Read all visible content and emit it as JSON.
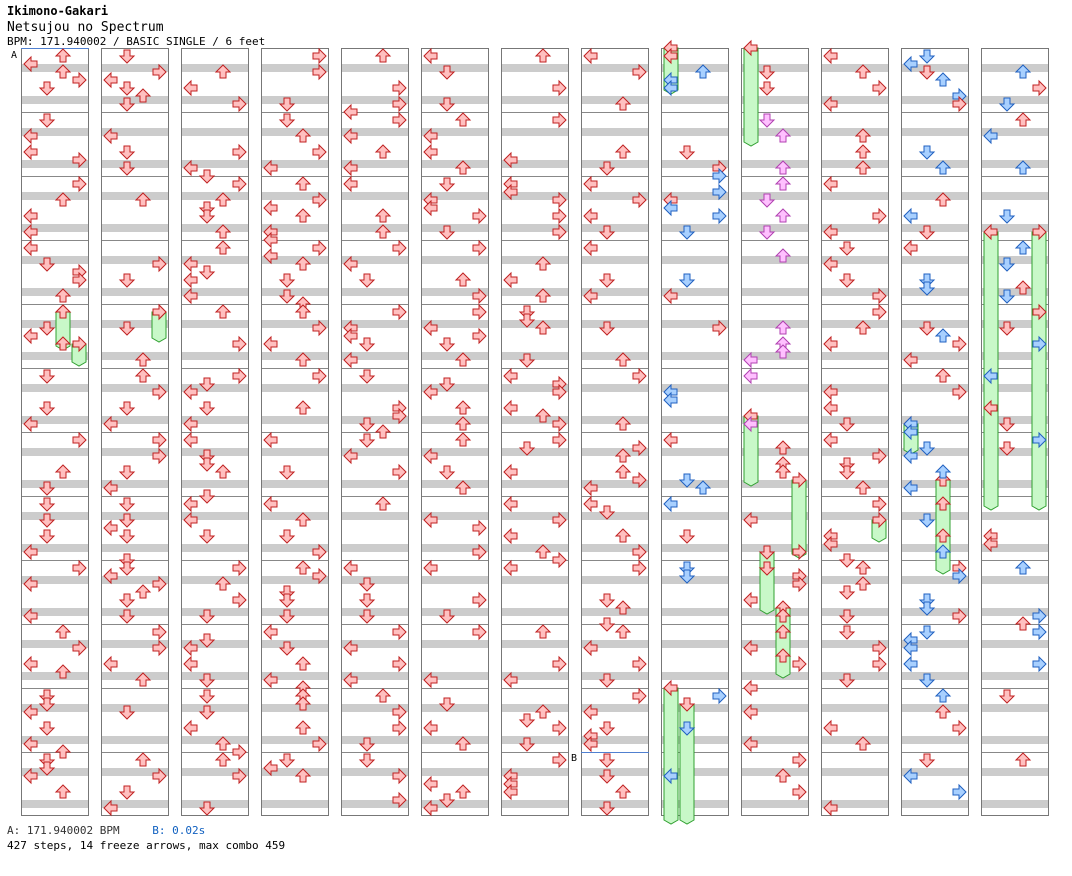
{
  "header": {
    "artist": "Ikimono-Gakari",
    "title": "Netsujou no Spectrum",
    "info": "BPM: 171.940002 / BASIC SINGLE / 6 feet"
  },
  "footer": {
    "bpm_label": "A: 171.940002 BPM",
    "offset_label": "B: 0.02s",
    "summary": "427 steps, 14 freeze arrows, max combo 459"
  },
  "markers": {
    "a": "A",
    "b": "B"
  },
  "colors": {
    "quarter": "#ffc0c0",
    "quarter_stroke": "#c02020",
    "eighth": "#a8d0ff",
    "eighth_stroke": "#2060c0",
    "sixteenth": "#ffc0ff",
    "sixteenth_stroke": "#b040b0",
    "freeze": "#c8f8c8",
    "freeze_stroke": "#30a030",
    "stripe": "#cccccc"
  },
  "chart_data": {
    "type": "step-chart",
    "lane_order": [
      "left",
      "down",
      "up",
      "right"
    ],
    "columns": 13,
    "measures_per_column": 12,
    "steps_total": 427,
    "freeze_arrows": 14,
    "max_combo": 459,
    "bpm": 171.940002,
    "offset_s": 0.02
  }
}
